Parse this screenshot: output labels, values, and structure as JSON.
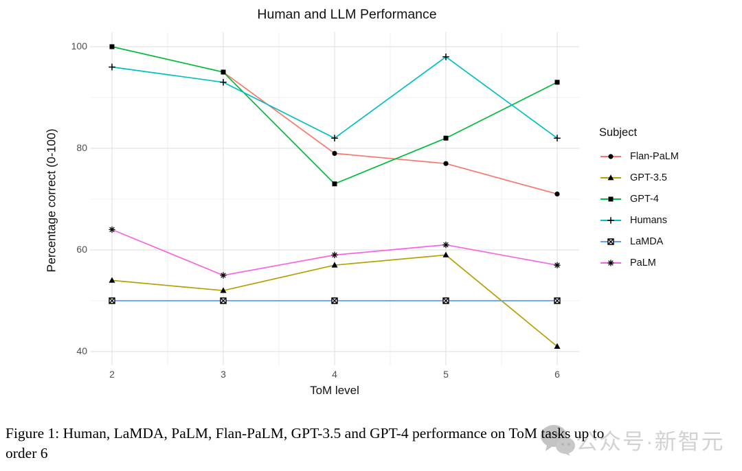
{
  "figure": {
    "caption_line1": "Figure 1: Human, LaMDA, PaLM, Flan-PaLM, GPT-3.5 and GPT-4 performance on ToM tasks up to",
    "caption_line2": "order 6",
    "watermark_text": "公众号·新智元"
  },
  "chart_data": {
    "type": "line",
    "title": "Human and LLM Performance",
    "xlabel": "ToM level",
    "ylabel": "Percentage correct (0-100)",
    "x": [
      2,
      3,
      4,
      5,
      6
    ],
    "x_ticks": [
      2,
      3,
      4,
      5,
      6
    ],
    "y_ticks": [
      40,
      60,
      80,
      100
    ],
    "x_minor": [
      2.5,
      3.5,
      4.5,
      5.5
    ],
    "y_minor": [
      50,
      70,
      90
    ],
    "xlim": [
      2,
      6
    ],
    "ylim": [
      40,
      100
    ],
    "grid": true,
    "legend_title": "Subject",
    "legend_position": "right",
    "series": [
      {
        "name": "Flan-PaLM",
        "color": "#F8766D",
        "marker": "circle",
        "values": [
          null,
          95,
          79,
          77,
          71
        ]
      },
      {
        "name": "GPT-3.5",
        "color": "#B79F00",
        "marker": "triangle",
        "values": [
          54,
          52,
          57,
          59,
          41
        ]
      },
      {
        "name": "GPT-4",
        "color": "#00BA38",
        "marker": "square",
        "values": [
          100,
          95,
          73,
          82,
          93
        ]
      },
      {
        "name": "Humans",
        "color": "#00BFC4",
        "marker": "plus",
        "values": [
          96,
          93,
          82,
          98,
          82
        ]
      },
      {
        "name": "LaMDA",
        "color": "#619CFF",
        "marker": "square-x",
        "values": [
          50,
          50,
          50,
          50,
          50
        ]
      },
      {
        "name": "PaLM",
        "color": "#F564E3",
        "marker": "asterisk",
        "values": [
          64,
          55,
          59,
          61,
          57
        ]
      }
    ],
    "grid_major_color": "#E2E2E2",
    "grid_minor_color": "#EFEFEF",
    "marker_color": "#000000"
  }
}
